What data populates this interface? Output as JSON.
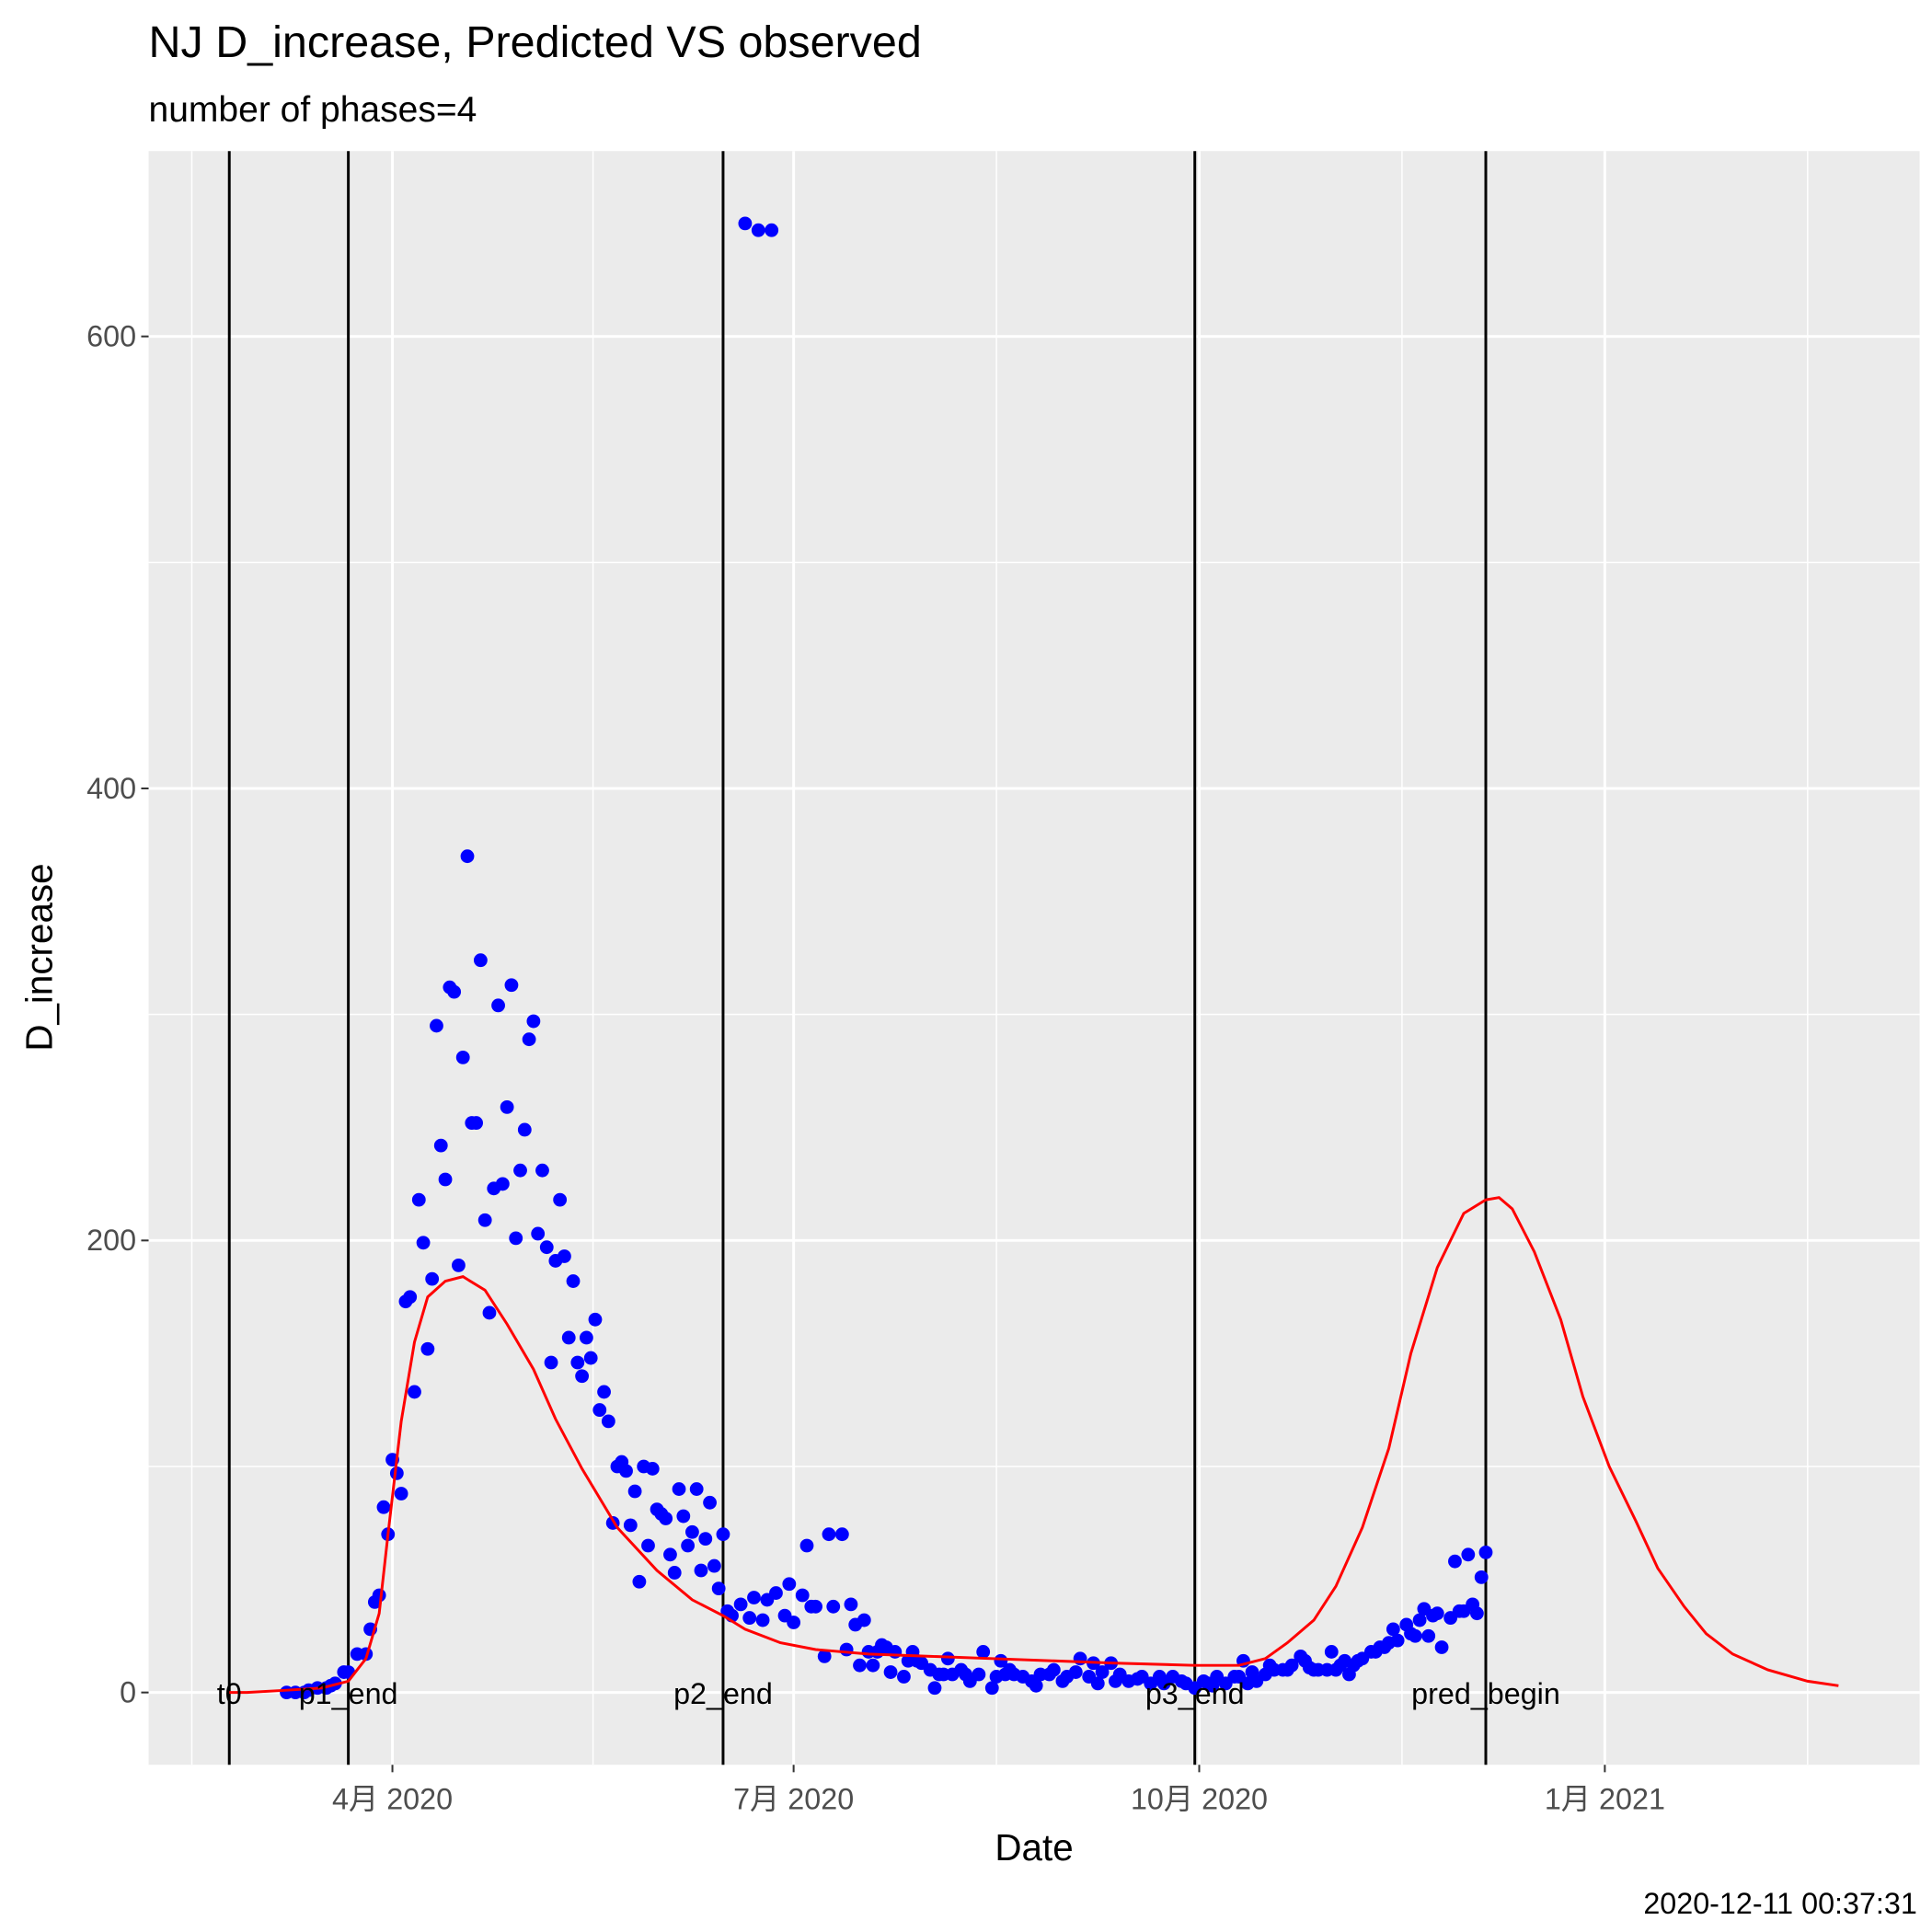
{
  "chart_data": {
    "type": "scatter",
    "title": "NJ D_increase, Predicted VS observed",
    "subtitle": "number of phases=4",
    "x_label": "Date",
    "y_label": "D_increase",
    "caption": "2020-12-11 00:37:31",
    "xlim": [
      36.7,
      438.4
    ],
    "xticks": [
      {
        "value": 92,
        "label": "4月 2020"
      },
      {
        "value": 183,
        "label": "7月 2020"
      },
      {
        "value": 275,
        "label": "10月 2020"
      },
      {
        "value": 367,
        "label": "1月 2021"
      }
    ],
    "ylim": [
      -32,
      682
    ],
    "yticks": [
      0,
      200,
      400,
      600
    ],
    "grid": true,
    "vlines": [
      {
        "x": 55,
        "label": "t0"
      },
      {
        "x": 82,
        "label": "p1_end"
      },
      {
        "x": 167,
        "label": "p2_end"
      },
      {
        "x": 274,
        "label": "p3_end"
      },
      {
        "x": 340,
        "label": "pred_begin"
      }
    ],
    "series": [
      {
        "type": "scatter",
        "color": "#0000ff",
        "x": [
          68,
          70,
          72,
          73,
          75,
          77,
          78,
          79,
          81,
          82,
          84,
          86,
          87,
          88,
          89,
          90,
          91,
          92,
          93,
          94,
          95,
          96,
          97,
          98,
          99,
          100,
          101,
          102,
          103,
          104,
          105,
          106,
          107,
          108,
          109,
          110,
          111,
          112,
          113,
          114,
          115,
          116,
          117,
          118,
          119,
          120,
          121,
          122,
          123,
          124,
          125,
          126,
          127,
          128,
          129,
          130,
          131,
          132,
          133,
          134,
          135,
          136,
          137,
          138,
          139,
          140,
          141,
          142,
          143,
          144,
          145,
          146,
          147,
          148,
          149,
          150,
          151,
          152,
          153,
          154,
          155,
          156,
          157,
          158,
          159,
          160,
          161,
          162,
          163,
          164,
          165,
          166,
          167,
          168,
          169,
          171,
          172,
          173,
          174,
          175,
          176,
          177,
          178,
          179,
          181,
          182,
          183,
          185,
          186,
          187,
          188,
          190,
          191,
          192,
          194,
          195,
          196,
          197,
          198,
          199,
          200,
          201,
          202,
          203,
          204,
          205,
          206,
          208,
          209,
          210,
          211,
          212,
          214,
          215,
          216,
          217,
          218,
          219,
          221,
          222,
          223,
          225,
          226,
          228,
          229,
          230,
          231,
          232,
          233,
          235,
          237,
          238,
          239,
          241,
          242,
          244,
          245,
          247,
          248,
          250,
          251,
          252,
          253,
          255,
          256,
          257,
          259,
          261,
          262,
          264,
          266,
          267,
          269,
          271,
          272,
          274,
          276,
          277,
          278,
          279,
          281,
          283,
          284,
          285,
          286,
          287,
          288,
          290,
          291,
          292,
          294,
          295,
          296,
          298,
          299,
          300,
          301,
          302,
          304,
          305,
          306,
          307,
          308,
          309,
          310,
          311,
          312,
          314,
          315,
          316,
          317,
          318,
          319,
          320,
          322,
          323,
          324,
          325,
          326,
          327,
          328,
          329,
          330,
          332,
          333,
          334,
          335,
          336,
          337,
          338,
          339,
          340
        ],
        "values": [
          0,
          0,
          0,
          1,
          2,
          2,
          3,
          4,
          9,
          9,
          17,
          17,
          28,
          40,
          43,
          82,
          70,
          103,
          97,
          88,
          173,
          175,
          133,
          218,
          199,
          152,
          183,
          295,
          242,
          227,
          312,
          310,
          189,
          281,
          370,
          252,
          252,
          324,
          209,
          168,
          223,
          304,
          225,
          259,
          313,
          201,
          231,
          249,
          289,
          297,
          203,
          231,
          197,
          146,
          191,
          218,
          193,
          157,
          182,
          146,
          140,
          157,
          148,
          165,
          125,
          133,
          120,
          75,
          100,
          102,
          98,
          74,
          89,
          49,
          100,
          65,
          99,
          81,
          79,
          77,
          61,
          53,
          90,
          78,
          65,
          71,
          90,
          54,
          68,
          84,
          56,
          46,
          70,
          36,
          34,
          39,
          650,
          33,
          42,
          647,
          32,
          41,
          647,
          44,
          34,
          48,
          31,
          43,
          65,
          38,
          38,
          16,
          70,
          38,
          70,
          19,
          39,
          30,
          12,
          32,
          18,
          12,
          18,
          21,
          20,
          9,
          18,
          7,
          14,
          18,
          14,
          13,
          10,
          2,
          8,
          8,
          15,
          8,
          10,
          8,
          5,
          8,
          18,
          2,
          7,
          14,
          8,
          10,
          8,
          7,
          5,
          3,
          8,
          8,
          10,
          5,
          7,
          9,
          15,
          7,
          13,
          4,
          9,
          13,
          5,
          8,
          5,
          6,
          7,
          4,
          7,
          4,
          7,
          5,
          4,
          2,
          5,
          4,
          3,
          7,
          4,
          7,
          7,
          14,
          4,
          9,
          5,
          8,
          12,
          10,
          10,
          10,
          12,
          16,
          14,
          11,
          10,
          10,
          10,
          18,
          10,
          12,
          14,
          8,
          12,
          14,
          15,
          18,
          18,
          20,
          20,
          22,
          28,
          23,
          30,
          26,
          25,
          32,
          37,
          25,
          34,
          35,
          20,
          33,
          58,
          36,
          36,
          61,
          39,
          35,
          51,
          62
        ]
      },
      {
        "type": "line",
        "color": "#ff0000",
        "x": [
          55,
          59,
          68,
          76,
          82,
          86,
          89,
          91,
          94,
          97,
          100,
          104,
          108,
          113,
          118,
          124,
          129,
          135,
          143,
          152,
          160,
          167,
          172,
          180,
          188,
          200,
          214,
          228,
          242,
          256,
          274,
          284,
          290,
          295,
          301,
          306,
          312,
          318,
          323,
          329,
          335,
          340,
          343,
          346,
          351,
          357,
          362,
          368,
          374,
          379,
          385,
          390,
          396,
          404,
          413,
          420
        ],
        "values": [
          0,
          0,
          1,
          2,
          5,
          15,
          35,
          70,
          120,
          155,
          175,
          182,
          184,
          178,
          163,
          143,
          121,
          99,
          73,
          54,
          41,
          34,
          28,
          22,
          19,
          17,
          16,
          15,
          14,
          13,
          12,
          12,
          15,
          22,
          32,
          47,
          73,
          108,
          150,
          188,
          212,
          218,
          219,
          214,
          195,
          165,
          131,
          100,
          76,
          55,
          38,
          26,
          17,
          10,
          5,
          3
        ]
      }
    ]
  }
}
